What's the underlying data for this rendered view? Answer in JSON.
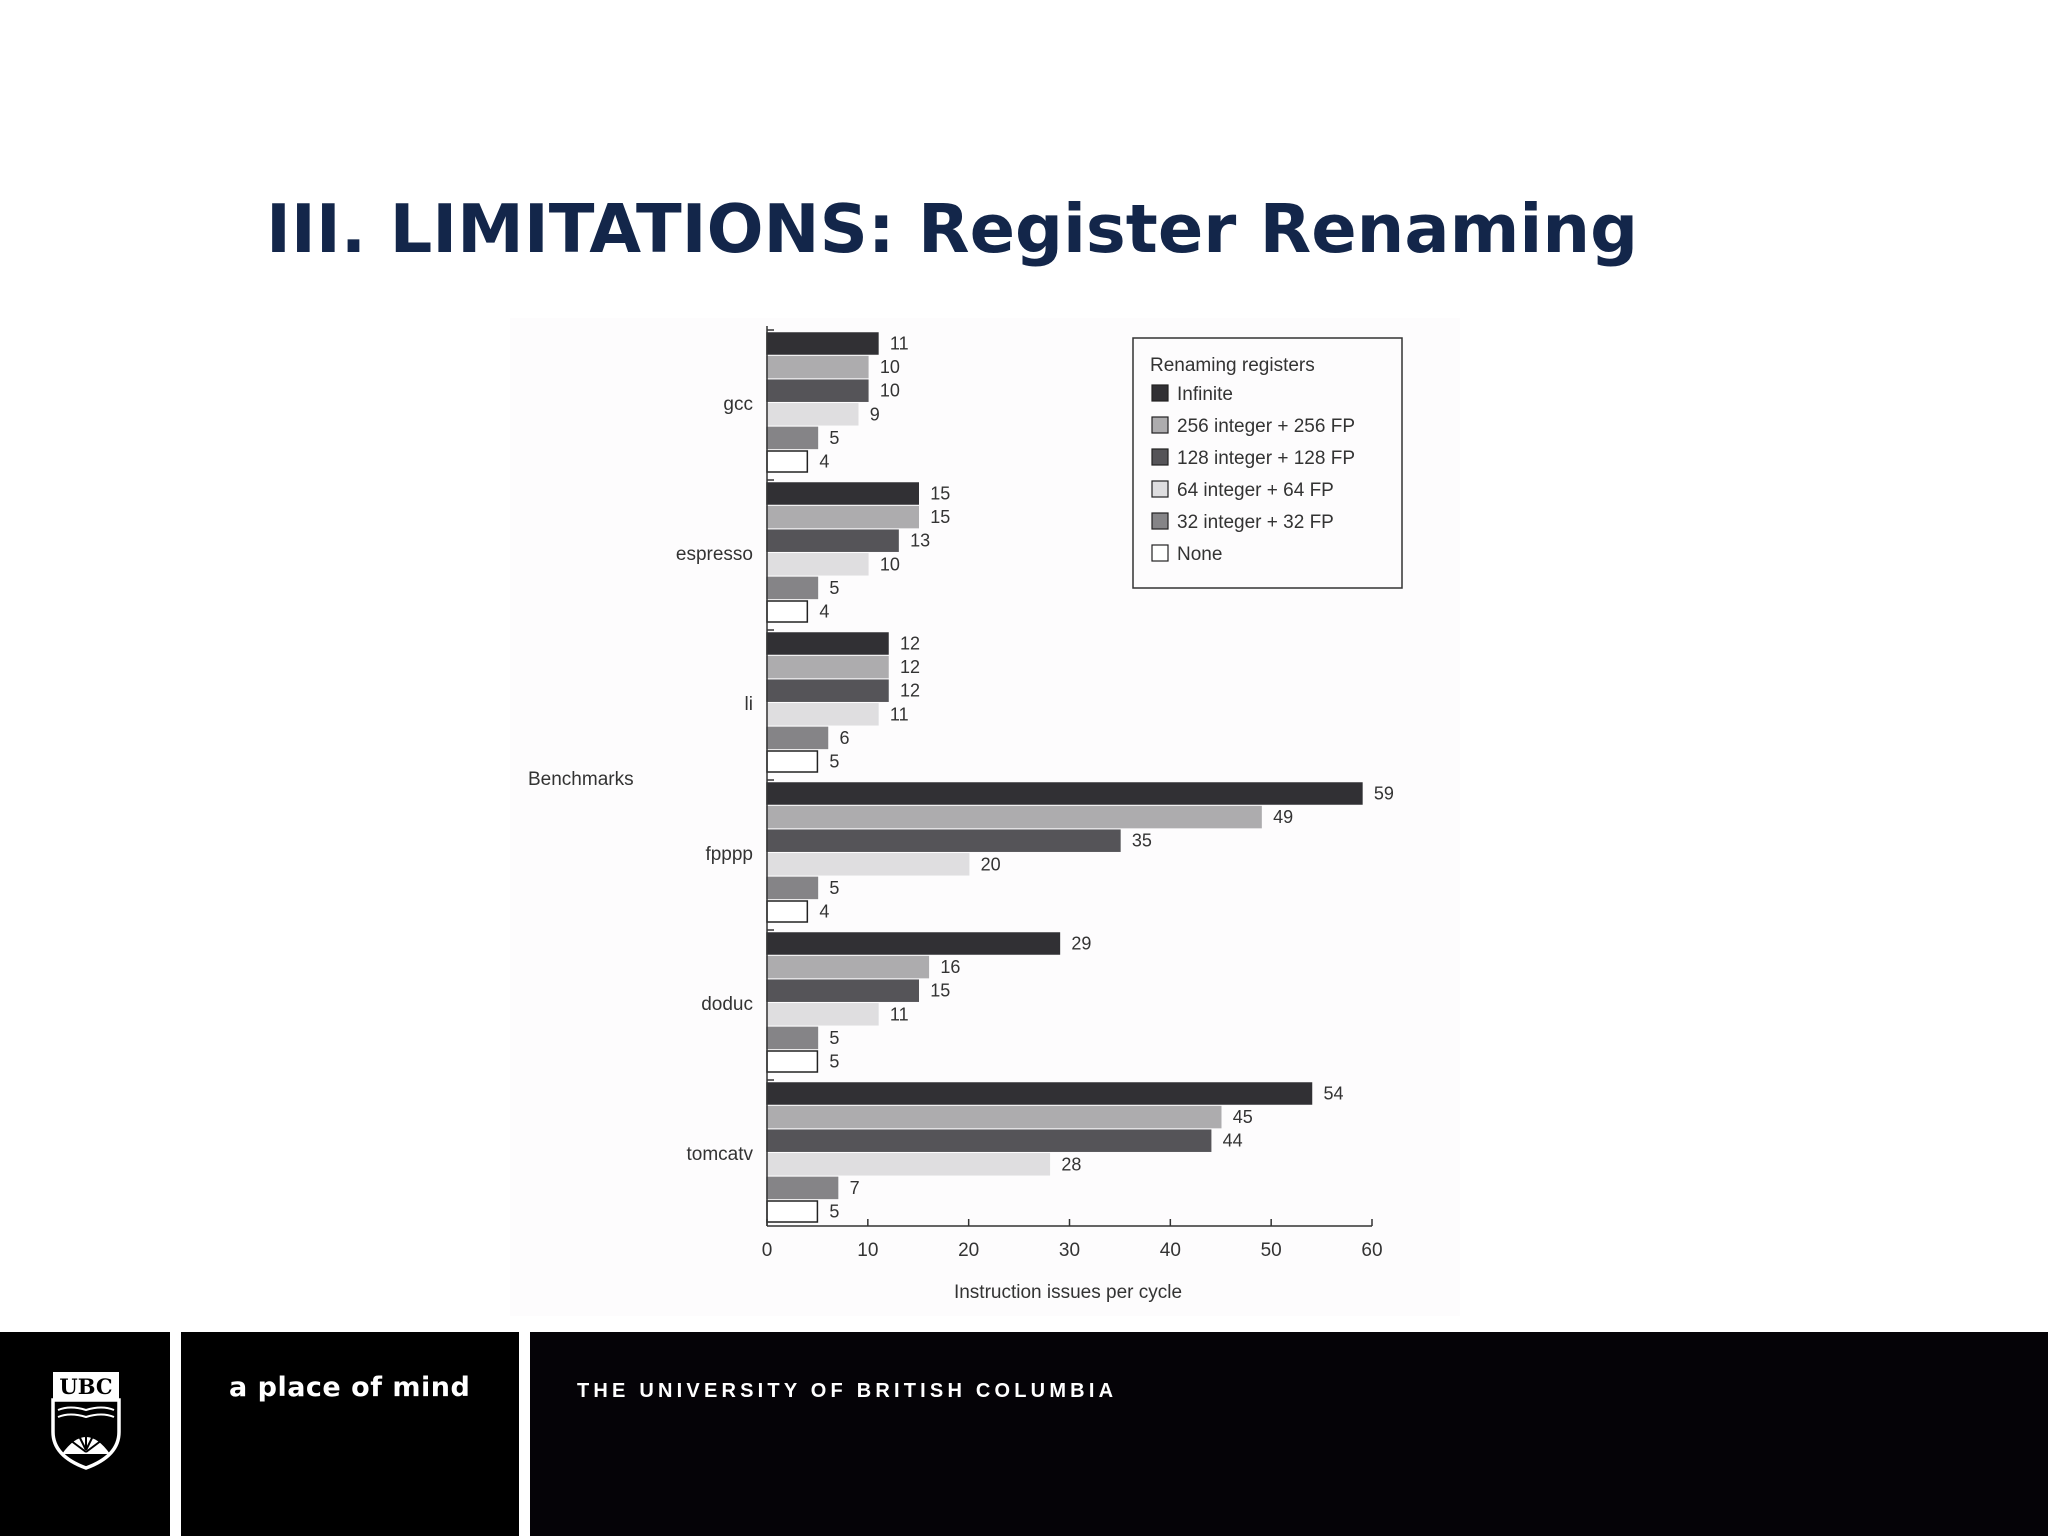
{
  "slide": {
    "title": "III. LIMITATIONS: Register Renaming"
  },
  "footer": {
    "logo_text": "UBC",
    "tagline": "a place of mind",
    "university": "THE UNIVERSITY OF BRITISH COLUMBIA"
  },
  "chart_data": {
    "type": "bar",
    "orientation": "horizontal",
    "categories": [
      "gcc",
      "espresso",
      "li",
      "fpppp",
      "doduc",
      "tomcatv"
    ],
    "series": [
      {
        "name": "Infinite",
        "color": "#313034",
        "values": [
          11,
          15,
          12,
          59,
          29,
          54
        ]
      },
      {
        "name": "256 integer + 256 FP",
        "color": "#adacae",
        "values": [
          10,
          15,
          12,
          49,
          16,
          45
        ]
      },
      {
        "name": "128 integer + 128 FP",
        "color": "#555458",
        "values": [
          10,
          13,
          12,
          35,
          15,
          44
        ]
      },
      {
        "name": "64 integer + 64 FP",
        "color": "#dfdee0",
        "values": [
          9,
          10,
          11,
          20,
          11,
          28
        ]
      },
      {
        "name": "32 integer + 32 FP",
        "color": "#858487",
        "values": [
          5,
          5,
          6,
          5,
          5,
          7
        ]
      },
      {
        "name": "None",
        "color": "#ffffff",
        "values": [
          4,
          4,
          5,
          4,
          5,
          5
        ]
      }
    ],
    "xlabel": "Instruction issues per cycle",
    "ylabel": "Benchmarks",
    "legend_title": "Renaming registers",
    "legend_position": "top-right",
    "xlim": [
      0,
      60
    ],
    "xticks": [
      0,
      10,
      20,
      30,
      40,
      50,
      60
    ],
    "grid": false
  }
}
